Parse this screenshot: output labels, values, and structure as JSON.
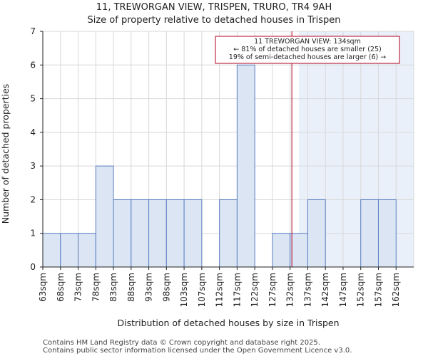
{
  "chart_data": {
    "type": "bar",
    "title": "11, TREWORGAN VIEW, TRISPEN, TRURO, TR4 9AH",
    "subtitle": "Size of property relative to detached houses in Trispen",
    "xlabel": "Distribution of detached houses by size in Trispen",
    "ylabel": "Number of detached properties",
    "ylim": [
      0,
      7
    ],
    "yticks": [
      "0",
      "1",
      "2",
      "3",
      "4",
      "5",
      "6",
      "7"
    ],
    "categories": [
      "63sqm",
      "68sqm",
      "73sqm",
      "78sqm",
      "83sqm",
      "88sqm",
      "93sqm",
      "98sqm",
      "103sqm",
      "107sqm",
      "112sqm",
      "117sqm",
      "122sqm",
      "127sqm",
      "132sqm",
      "137sqm",
      "142sqm",
      "147sqm",
      "152sqm",
      "157sqm",
      "162sqm"
    ],
    "values": [
      1,
      1,
      1,
      3,
      2,
      2,
      2,
      2,
      2,
      0,
      2,
      6,
      0,
      1,
      1,
      2,
      0,
      0,
      2,
      2,
      0
    ],
    "highlight_from_index": 14.5,
    "marker_value": 134,
    "annotation": {
      "line1": "11 TREWORGAN VIEW: 134sqm",
      "line2": "← 81% of detached houses are smaller (25)",
      "line3": "19% of semi-detached houses are larger (6) →"
    },
    "colors": {
      "bar_fill": "#dbe5f4",
      "bar_stroke": "#5a7fc0",
      "highlight_bg": "#eaf0fa",
      "marker": "#b00020",
      "grid": "#d8d8d8"
    }
  },
  "footer": {
    "line1": "Contains HM Land Registry data © Crown copyright and database right 2025.",
    "line2": "Contains public sector information licensed under the Open Government Licence v3.0."
  }
}
